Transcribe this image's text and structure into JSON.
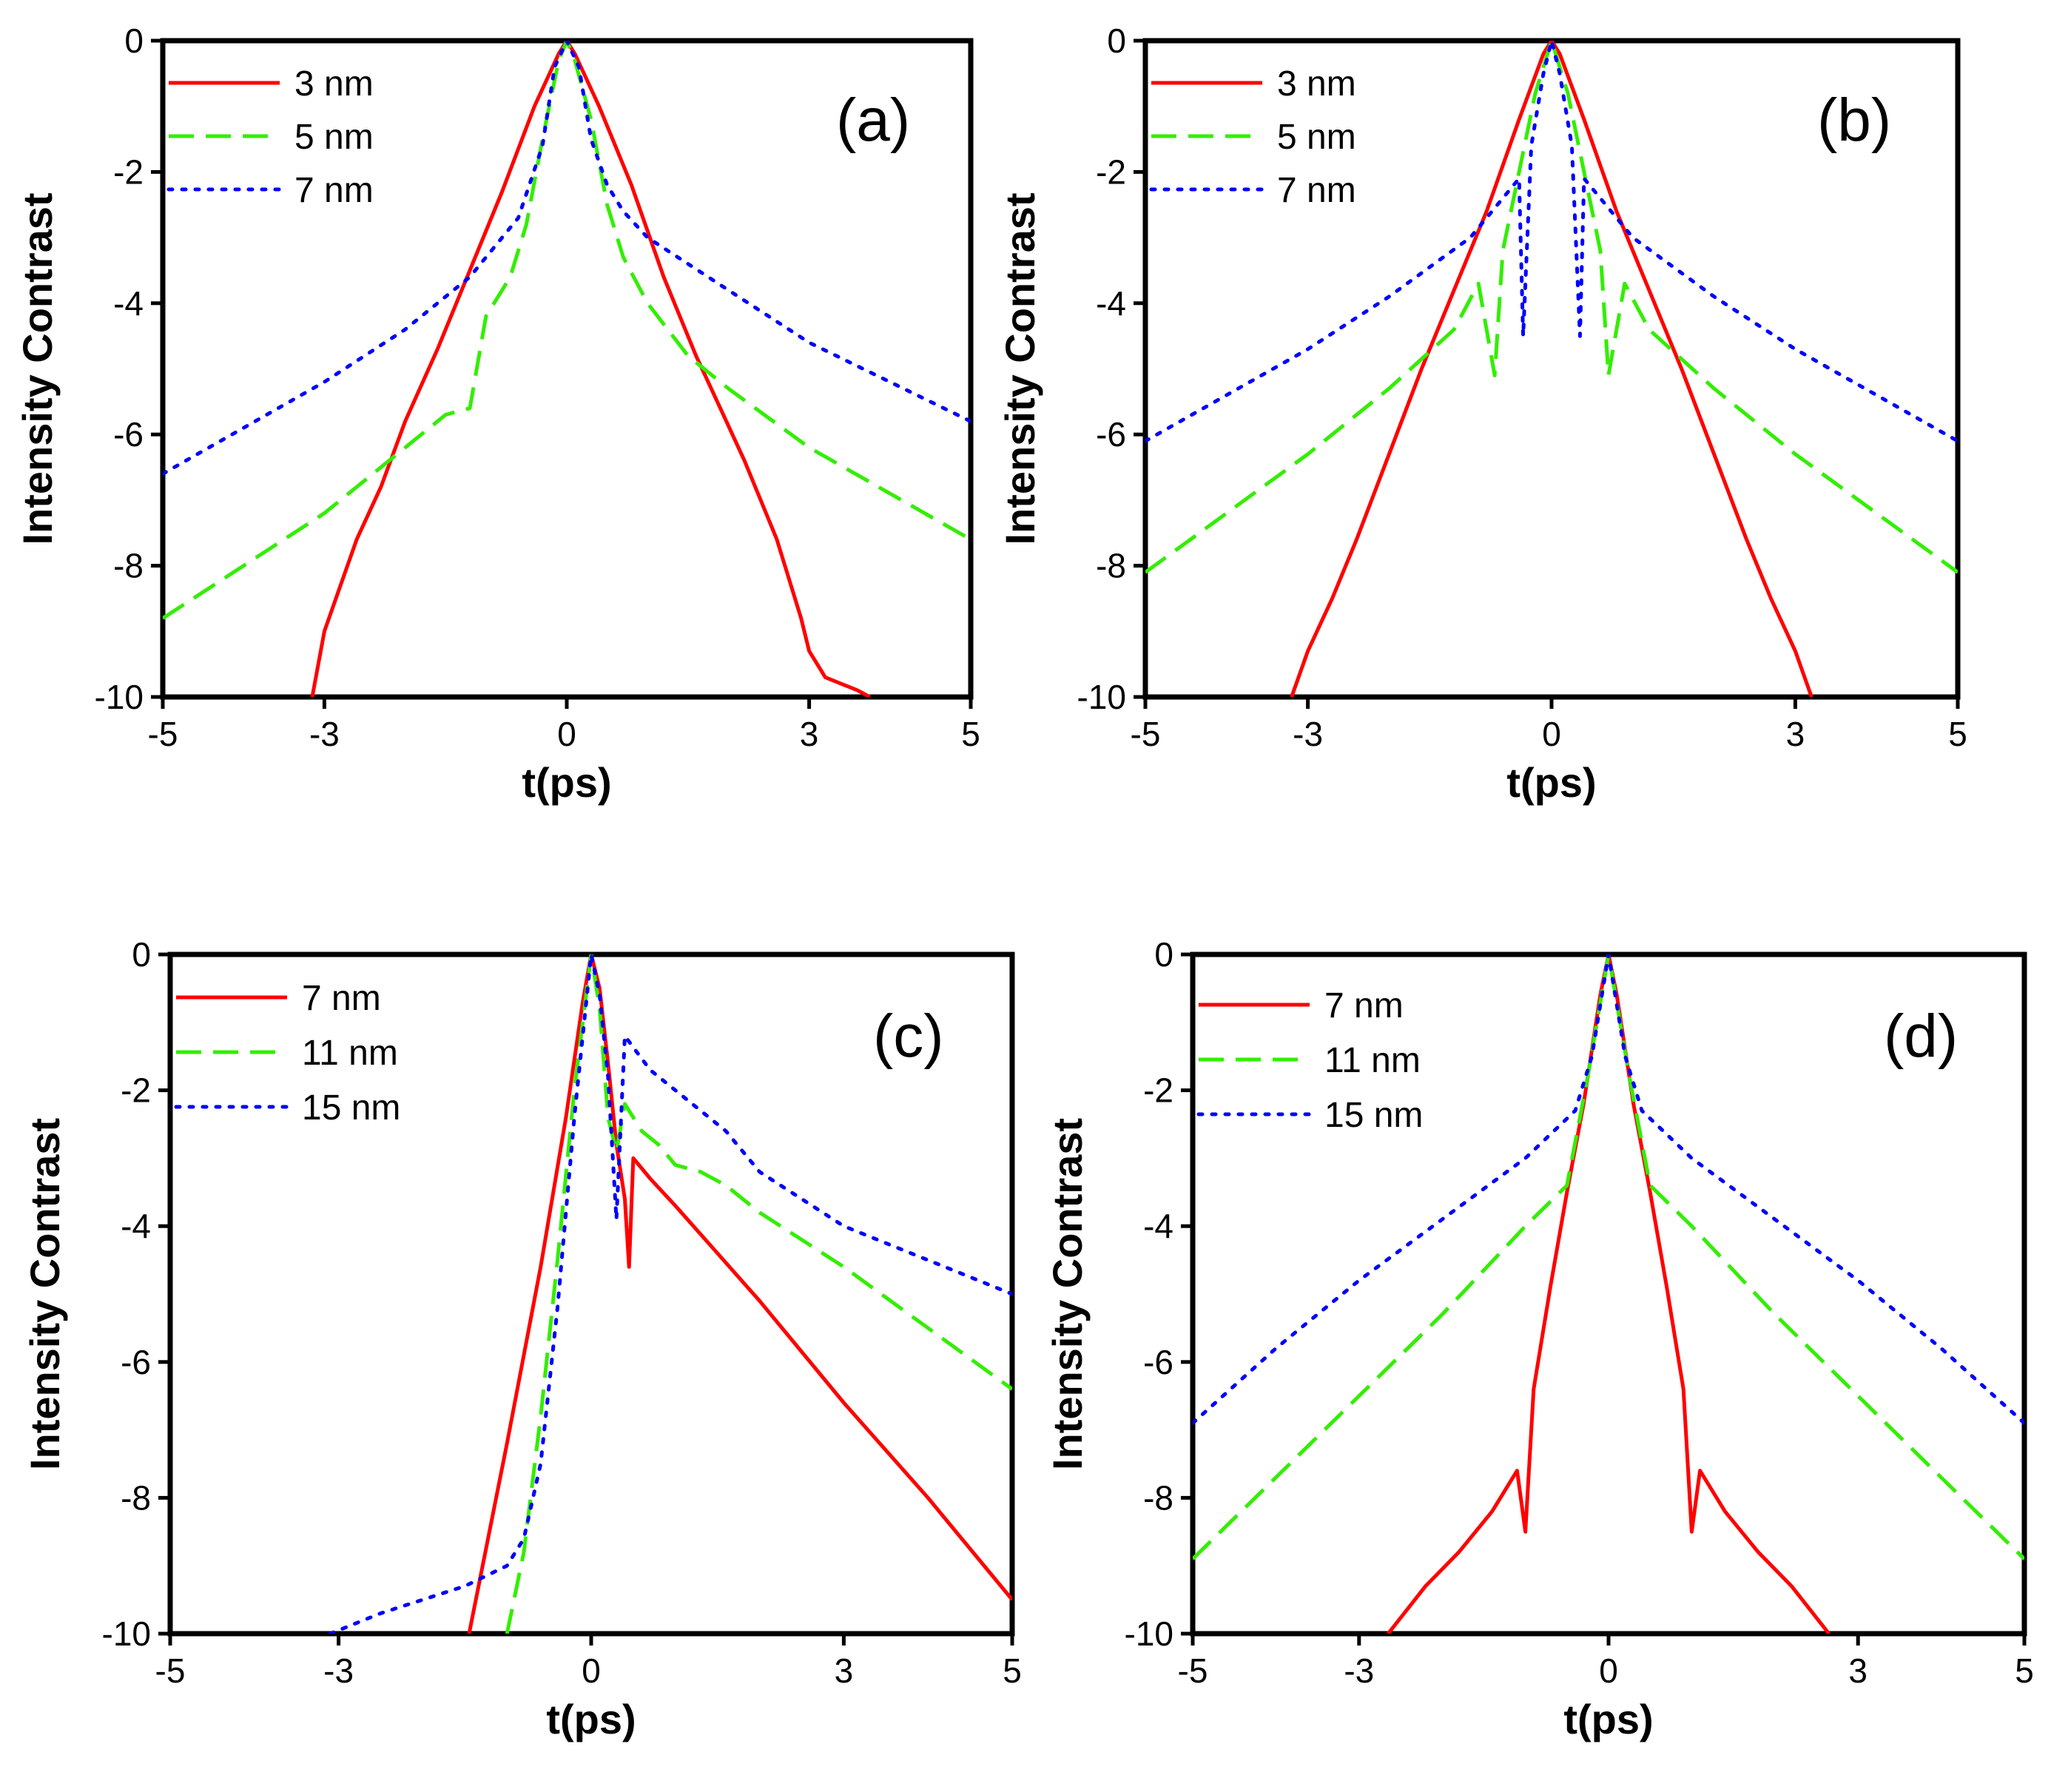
{
  "figure": {
    "colors": {
      "red": "#ff0000",
      "green": "#33ee00",
      "blue": "#0000ff",
      "axis": "#000000"
    }
  },
  "chart_data": [
    {
      "type": "line",
      "panel_label": "(a)",
      "xlabel": "t(ps)",
      "ylabel": "Intensity Contrast",
      "xlim": [
        -5,
        5
      ],
      "ylim": [
        -10,
        0
      ],
      "xticks": [
        "-5",
        "-3",
        "0",
        "3",
        "5"
      ],
      "yticks": [
        "0",
        "-2",
        "-4",
        "-6",
        "-8",
        "-10"
      ],
      "series": [
        {
          "name": "3 nm",
          "style": "solid",
          "color": "#ff0000",
          "x": [
            -3.15,
            -3.0,
            -2.8,
            -2.6,
            -2.3,
            -2.0,
            -1.6,
            -1.2,
            -0.8,
            -0.4,
            -0.1,
            0,
            0.1,
            0.4,
            0.8,
            1.2,
            1.6,
            1.9,
            2.2,
            2.4,
            2.6,
            2.75,
            2.9,
            3.0,
            3.2,
            3.4,
            3.6,
            3.75
          ],
          "y": [
            -10,
            -9.0,
            -8.3,
            -7.6,
            -6.8,
            -5.8,
            -4.7,
            -3.5,
            -2.3,
            -1.0,
            -0.2,
            0,
            -0.2,
            -1.0,
            -2.2,
            -3.6,
            -4.8,
            -5.6,
            -6.4,
            -7.0,
            -7.6,
            -8.2,
            -8.8,
            -9.3,
            -9.7,
            -9.8,
            -9.9,
            -10
          ]
        },
        {
          "name": "5 nm",
          "style": "dash",
          "color": "#33ee00",
          "x": [
            -5,
            -4,
            -3,
            -2,
            -1.5,
            -1.2,
            -1.0,
            -0.9,
            -0.7,
            -0.5,
            -0.3,
            -0.1,
            0,
            0.1,
            0.3,
            0.5,
            0.7,
            1.0,
            1.5,
            2,
            3,
            4,
            5
          ],
          "y": [
            -8.8,
            -8.0,
            -7.2,
            -6.2,
            -5.7,
            -5.6,
            -4.2,
            -4.0,
            -3.6,
            -2.8,
            -1.5,
            -0.3,
            0,
            -0.3,
            -1.2,
            -2.5,
            -3.3,
            -4.0,
            -4.8,
            -5.3,
            -6.2,
            -6.9,
            -7.6
          ]
        },
        {
          "name": "7 nm",
          "style": "dot",
          "color": "#0000ff",
          "x": [
            -5,
            -4,
            -3,
            -2,
            -1.2,
            -0.6,
            -0.3,
            -0.15,
            0,
            0.15,
            0.3,
            0.5,
            0.7,
            1,
            2,
            3,
            4,
            5
          ],
          "y": [
            -6.6,
            -5.9,
            -5.2,
            -4.4,
            -3.6,
            -2.7,
            -1.6,
            -0.4,
            0,
            -0.4,
            -1.5,
            -2.2,
            -2.6,
            -3.0,
            -3.8,
            -4.6,
            -5.2,
            -5.8
          ]
        }
      ]
    },
    {
      "type": "line",
      "panel_label": "(b)",
      "xlabel": "t(ps)",
      "ylabel": "Intensity Contrast",
      "xlim": [
        -5,
        5
      ],
      "ylim": [
        -10,
        0
      ],
      "xticks": [
        "-5",
        "-3",
        "0",
        "3",
        "5"
      ],
      "yticks": [
        "0",
        "-2",
        "-4",
        "-6",
        "-8",
        "-10"
      ],
      "series": [
        {
          "name": "3 nm",
          "style": "solid",
          "color": "#ff0000",
          "x": [
            -3.2,
            -3.0,
            -2.7,
            -2.4,
            -2.0,
            -1.6,
            -1.2,
            -0.8,
            -0.4,
            -0.1,
            0,
            0.1,
            0.4,
            0.8,
            1.2,
            1.6,
            2.0,
            2.4,
            2.7,
            3.0,
            3.2
          ],
          "y": [
            -10,
            -9.3,
            -8.5,
            -7.6,
            -6.3,
            -5.0,
            -3.8,
            -2.6,
            -1.2,
            -0.2,
            0,
            -0.2,
            -1.2,
            -2.6,
            -3.8,
            -5.0,
            -6.3,
            -7.6,
            -8.5,
            -9.3,
            -10
          ]
        },
        {
          "name": "5 nm",
          "style": "dash",
          "color": "#33ee00",
          "x": [
            -5,
            -4,
            -3,
            -2,
            -1.2,
            -0.9,
            -0.7,
            -0.6,
            -0.4,
            -0.2,
            0,
            0.2,
            0.4,
            0.6,
            0.7,
            0.9,
            1.2,
            2,
            3,
            4,
            5
          ],
          "y": [
            -8.1,
            -7.2,
            -6.3,
            -5.3,
            -4.4,
            -3.7,
            -5.1,
            -3.2,
            -2.0,
            -0.8,
            0,
            -0.8,
            -2.0,
            -3.2,
            -5.1,
            -3.7,
            -4.4,
            -5.3,
            -6.3,
            -7.2,
            -8.1
          ]
        },
        {
          "name": "7 nm",
          "style": "dot",
          "color": "#0000ff",
          "x": [
            -5,
            -4,
            -3,
            -2,
            -1,
            -0.6,
            -0.4,
            -0.35,
            -0.25,
            -0.1,
            0,
            0.1,
            0.25,
            0.35,
            0.4,
            0.6,
            1,
            2,
            3,
            4,
            5
          ],
          "y": [
            -6.1,
            -5.4,
            -4.7,
            -3.9,
            -3.0,
            -2.4,
            -2.1,
            -4.5,
            -1.6,
            -0.5,
            0,
            -0.5,
            -1.6,
            -4.5,
            -2.1,
            -2.4,
            -3.0,
            -3.9,
            -4.7,
            -5.4,
            -6.1
          ]
        }
      ]
    },
    {
      "type": "line",
      "panel_label": "(c)",
      "xlabel": "t(ps)",
      "ylabel": "Intensity Contrast",
      "xlim": [
        -5,
        5
      ],
      "ylim": [
        -10,
        0
      ],
      "xticks": [
        "-5",
        "-3",
        "0",
        "3",
        "5"
      ],
      "yticks": [
        "0",
        "-2",
        "-4",
        "-6",
        "-8",
        "-10"
      ],
      "series": [
        {
          "name": "7 nm",
          "style": "solid",
          "color": "#ff0000",
          "x": [
            -1.45,
            -1.0,
            -0.6,
            -0.3,
            -0.1,
            0,
            0.1,
            0.2,
            0.3,
            0.4,
            0.45,
            0.5,
            0.7,
            1.0,
            1.5,
            2,
            3,
            4,
            5
          ],
          "y": [
            -10,
            -7.2,
            -4.6,
            -2.4,
            -0.7,
            0,
            -0.5,
            -1.6,
            -2.8,
            -3.6,
            -4.6,
            -3.0,
            -3.3,
            -3.7,
            -4.4,
            -5.1,
            -6.6,
            -8.0,
            -9.5
          ]
        },
        {
          "name": "11 nm",
          "style": "dash",
          "color": "#33ee00",
          "x": [
            -1.0,
            -0.8,
            -0.6,
            -0.4,
            -0.2,
            0,
            0.1,
            0.2,
            0.3,
            0.4,
            0.6,
            0.8,
            1.0,
            1.3,
            1.6,
            1.8,
            2,
            3,
            4,
            5
          ],
          "y": [
            -10,
            -8.8,
            -6.8,
            -4.5,
            -2.0,
            0,
            -0.8,
            -2.4,
            -2.9,
            -2.2,
            -2.6,
            -2.8,
            -3.1,
            -3.2,
            -3.4,
            -3.6,
            -3.8,
            -4.6,
            -5.5,
            -6.4
          ]
        },
        {
          "name": "15 nm",
          "style": "dot",
          "color": "#0000ff",
          "x": [
            -3.1,
            -2.5,
            -2.0,
            -1.5,
            -1.0,
            -0.8,
            -0.6,
            -0.4,
            -0.2,
            0,
            0.1,
            0.2,
            0.3,
            0.4,
            0.7,
            1.0,
            1.3,
            1.6,
            2.0,
            2.5,
            3,
            4,
            5
          ],
          "y": [
            -10,
            -9.7,
            -9.5,
            -9.3,
            -9.0,
            -8.6,
            -7.5,
            -5.2,
            -2.4,
            0,
            -0.6,
            -1.8,
            -3.9,
            -1.2,
            -1.7,
            -2.0,
            -2.3,
            -2.6,
            -3.2,
            -3.6,
            -4.0,
            -4.5,
            -5.0
          ]
        }
      ]
    },
    {
      "type": "line",
      "panel_label": "(d)",
      "xlabel": "t(ps)",
      "ylabel": "Intensity Contrast",
      "xlim": [
        -5,
        5
      ],
      "ylim": [
        -10,
        0
      ],
      "xticks": [
        "-5",
        "-3",
        "0",
        "3",
        "5"
      ],
      "yticks": [
        "0",
        "-2",
        "-4",
        "-6",
        "-8",
        "-10"
      ],
      "series": [
        {
          "name": "7 nm",
          "style": "solid",
          "color": "#ff0000",
          "x": [
            -2.65,
            -2.2,
            -1.8,
            -1.4,
            -1.1,
            -1.0,
            -0.9,
            -0.7,
            -0.5,
            -0.3,
            -0.1,
            0,
            0.1,
            0.3,
            0.5,
            0.7,
            0.9,
            1.0,
            1.1,
            1.4,
            1.8,
            2.2,
            2.65
          ],
          "y": [
            -10,
            -9.3,
            -8.8,
            -8.2,
            -7.6,
            -8.5,
            -6.4,
            -4.9,
            -3.5,
            -2.2,
            -0.6,
            0,
            -0.6,
            -2.2,
            -3.5,
            -4.9,
            -6.4,
            -8.5,
            -7.6,
            -8.2,
            -8.8,
            -9.3,
            -10
          ]
        },
        {
          "name": "11 nm",
          "style": "dash",
          "color": "#33ee00",
          "x": [
            -5,
            -4,
            -3,
            -2,
            -1,
            -0.5,
            -0.25,
            0,
            0.25,
            0.5,
            1,
            2,
            3,
            4,
            5
          ],
          "y": [
            -8.9,
            -7.7,
            -6.5,
            -5.3,
            -4.0,
            -3.4,
            -1.8,
            0,
            -1.8,
            -3.4,
            -4.0,
            -5.3,
            -6.5,
            -7.7,
            -8.9
          ]
        },
        {
          "name": "15 nm",
          "style": "dot",
          "color": "#0000ff",
          "x": [
            -5,
            -4,
            -3,
            -2,
            -1,
            -0.4,
            -0.2,
            0,
            0.2,
            0.4,
            1,
            2,
            3,
            4,
            5
          ],
          "y": [
            -6.9,
            -5.8,
            -4.8,
            -3.9,
            -3.0,
            -2.3,
            -1.5,
            0,
            -1.5,
            -2.3,
            -3.0,
            -3.9,
            -4.8,
            -5.8,
            -6.9
          ]
        }
      ]
    }
  ]
}
